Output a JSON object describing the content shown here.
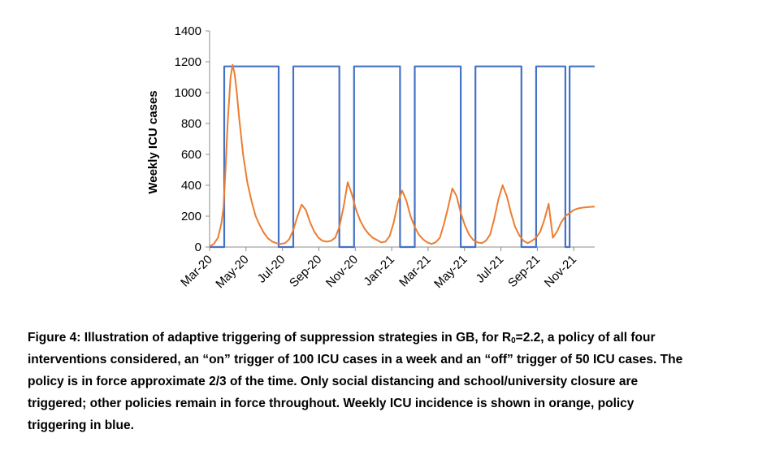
{
  "chart_data": {
    "type": "line",
    "title": "",
    "xlabel": "",
    "ylabel": "Weekly ICU cases",
    "ylim": [
      0,
      1400
    ],
    "yticks": [
      0,
      200,
      400,
      600,
      800,
      1000,
      1200,
      1400
    ],
    "x_unit": "weeks since Mar-20 (approx. 4.35 weeks per month)",
    "xlim": [
      0,
      92
    ],
    "xtick_labels": [
      "Mar-20",
      "May-20",
      "Jul-20",
      "Sep-20",
      "Nov-20",
      "Jan-21",
      "Mar-21",
      "May-21",
      "Jul-21",
      "Sep-21",
      "Nov-21"
    ],
    "xtick_positions": [
      0,
      8.7,
      17.4,
      26.1,
      34.8,
      43.5,
      52.2,
      60.9,
      69.6,
      78.3,
      87
    ],
    "grid": false,
    "legend": "none",
    "series": [
      {
        "name": "Weekly ICU incidence",
        "color": "#ED7D31",
        "x": [
          0,
          1,
          2,
          2.8,
          3.3,
          3.8,
          4.3,
          5,
          5.5,
          6,
          6.5,
          7,
          8,
          9,
          10,
          11,
          12,
          13,
          14,
          15,
          16,
          17,
          18,
          19,
          20,
          21,
          22,
          23,
          24,
          25,
          26,
          27,
          28,
          29,
          30,
          31,
          32,
          33,
          34,
          35,
          36,
          37,
          38,
          39,
          40,
          41,
          42,
          43,
          44,
          45,
          46,
          47,
          48,
          49,
          50,
          51,
          52,
          53,
          54,
          55,
          56,
          57,
          58,
          59,
          60,
          61,
          62,
          63,
          64,
          65,
          66,
          67,
          68,
          69,
          70,
          71,
          72,
          73,
          74,
          75,
          76,
          77,
          78,
          79,
          80,
          81,
          82,
          83,
          84,
          85,
          86,
          87,
          88,
          89,
          90,
          91,
          92
        ],
        "values": [
          5,
          20,
          60,
          150,
          250,
          500,
          800,
          1100,
          1180,
          1120,
          1000,
          850,
          600,
          420,
          300,
          200,
          140,
          90,
          55,
          35,
          25,
          20,
          25,
          50,
          110,
          200,
          275,
          240,
          160,
          100,
          60,
          40,
          35,
          40,
          60,
          130,
          260,
          420,
          340,
          240,
          170,
          120,
          85,
          60,
          45,
          30,
          35,
          70,
          160,
          290,
          365,
          300,
          200,
          130,
          80,
          50,
          30,
          20,
          30,
          60,
          150,
          260,
          380,
          330,
          220,
          140,
          80,
          45,
          30,
          25,
          40,
          80,
          180,
          310,
          400,
          330,
          220,
          130,
          75,
          40,
          25,
          40,
          60,
          100,
          180,
          280,
          60,
          100,
          160,
          200,
          220,
          240,
          250,
          255,
          258,
          260,
          262
        ]
      },
      {
        "name": "Policy triggering",
        "color": "#4472C4",
        "x": [
          0,
          3.5,
          3.5,
          16.5,
          16.5,
          20,
          20,
          31,
          31,
          34.5,
          34.5,
          45.5,
          45.5,
          49,
          49,
          60,
          60,
          63.5,
          63.5,
          74.5,
          74.5,
          78,
          78,
          85,
          85,
          86,
          86,
          92
        ],
        "values": [
          0,
          0,
          1170,
          1170,
          0,
          0,
          1170,
          1170,
          0,
          0,
          1170,
          1170,
          0,
          0,
          1170,
          1170,
          0,
          0,
          1170,
          1170,
          0,
          0,
          1170,
          1170,
          0,
          0,
          1170,
          1170
        ]
      }
    ]
  },
  "caption": {
    "lines": [
      [
        "Figure 4: Illustration of adaptive triggering of suppression strategies in GB, for R",
        "0",
        "=2.2, a policy of all four"
      ],
      [
        "interventions considered, an “on” trigger of 100 ICU cases in a week and an “off” trigger of 50 ICU cases.  The"
      ],
      [
        "policy is in force approximate 2/3 of the time. Only social distancing and school/university closure are"
      ],
      [
        "triggered; other policies remain in force throughout. Weekly ICU incidence is shown in orange, policy"
      ],
      [
        "triggering in blue."
      ]
    ]
  }
}
